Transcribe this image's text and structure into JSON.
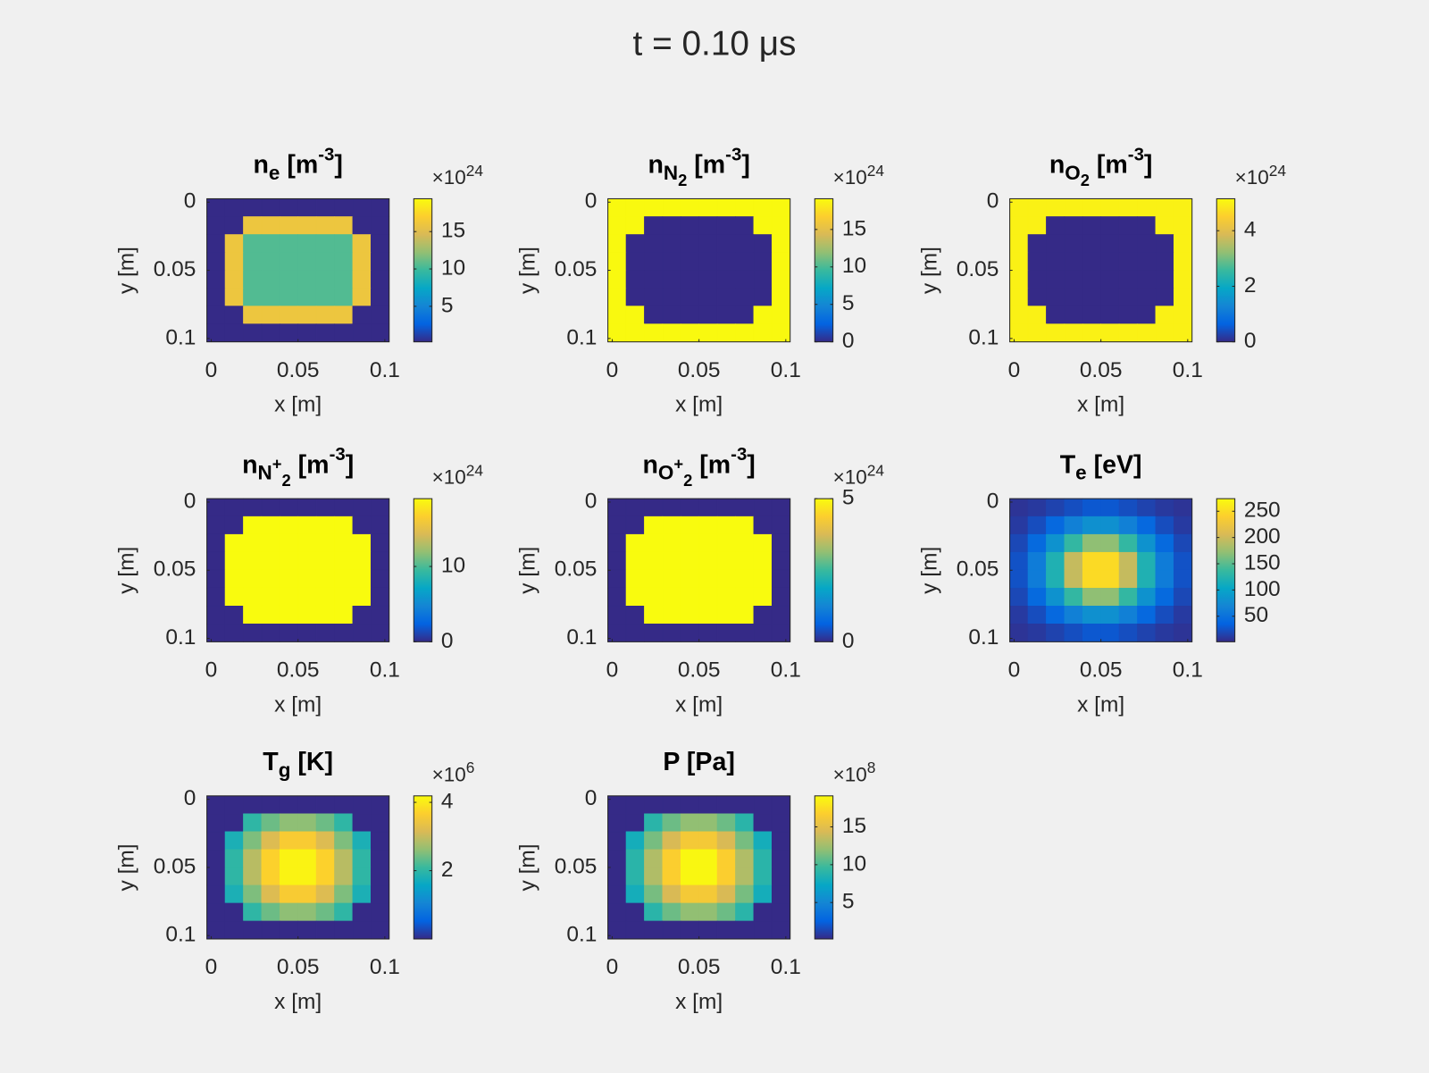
{
  "figure_title": "t = 0.10 μs",
  "chart_data": [
    {
      "type": "heatmap",
      "colormap": "parula",
      "title": [
        {
          "t": "n"
        },
        {
          "t": "e",
          "s": "sub"
        },
        {
          "t": " [m"
        },
        {
          "t": "-3",
          "s": "sup"
        },
        {
          "t": "]"
        }
      ],
      "xlabel": "x [m]",
      "ylabel": "y [m]",
      "xlim": [
        -0.0025,
        0.1025
      ],
      "ylim": [
        -0.0025,
        0.1025
      ],
      "xticks": [
        0,
        0.05,
        0.1
      ],
      "yticks": [
        0,
        0.05,
        0.1
      ],
      "clim": [
        0.24,
        19.4
      ],
      "cticks": [
        5,
        10,
        15
      ],
      "colorbar_exponent": {
        "base": "×10",
        "power": "24"
      },
      "z": [
        [
          0.24,
          0.24,
          0.24,
          0.24,
          0.24,
          0.24,
          0.24,
          0.24,
          0.24,
          0.24
        ],
        [
          0.24,
          0.24,
          16,
          16,
          16,
          16,
          16,
          16,
          0.24,
          0.24
        ],
        [
          0.24,
          16,
          10.5,
          10.5,
          10.5,
          10.5,
          10.5,
          10.5,
          16,
          0.24
        ],
        [
          0.24,
          16,
          10.5,
          10.5,
          10.5,
          10.5,
          10.5,
          10.5,
          16,
          0.24
        ],
        [
          0.24,
          16,
          10.5,
          10.5,
          10.5,
          10.5,
          10.5,
          10.5,
          16,
          0.24
        ],
        [
          0.24,
          16,
          10.5,
          10.5,
          10.5,
          10.5,
          10.5,
          10.5,
          16,
          0.24
        ],
        [
          0.24,
          0.24,
          16,
          16,
          16,
          16,
          16,
          16,
          0.24,
          0.24
        ],
        [
          0.24,
          0.24,
          0.24,
          0.24,
          0.24,
          0.24,
          0.24,
          0.24,
          0.24,
          0.24
        ]
      ]
    },
    {
      "type": "heatmap",
      "colormap": "parula",
      "title": [
        {
          "t": "n"
        },
        {
          "t": "N",
          "s": "sub"
        },
        {
          "t": "2",
          "s": "sub2"
        },
        {
          "t": " [m"
        },
        {
          "t": "-3",
          "s": "sup"
        },
        {
          "t": "]"
        }
      ],
      "xlabel": "x [m]",
      "ylabel": "y [m]",
      "xlim": [
        -0.0025,
        0.1025
      ],
      "ylim": [
        -0.0025,
        0.1025
      ],
      "xticks": [
        0,
        0.05,
        0.1
      ],
      "yticks": [
        0,
        0.05,
        0.1
      ],
      "clim": [
        0,
        19.1
      ],
      "cticks": [
        0,
        5,
        10,
        15
      ],
      "colorbar_exponent": {
        "base": "×10",
        "power": "24"
      },
      "z": [
        [
          19,
          19,
          19,
          19,
          19,
          19,
          19,
          19,
          19,
          19
        ],
        [
          19,
          19,
          0,
          0,
          0,
          0,
          0,
          0,
          19,
          19
        ],
        [
          19,
          0,
          0,
          0,
          0,
          0,
          0,
          0,
          0,
          19
        ],
        [
          19,
          0,
          0,
          0,
          0,
          0,
          0,
          0,
          0,
          19
        ],
        [
          19,
          0,
          0,
          0,
          0,
          0,
          0,
          0,
          0,
          19
        ],
        [
          19,
          0,
          0,
          0,
          0,
          0,
          0,
          0,
          0,
          19
        ],
        [
          19,
          19,
          0,
          0,
          0,
          0,
          0,
          0,
          19,
          19
        ],
        [
          19,
          19,
          19,
          19,
          19,
          19,
          19,
          19,
          19,
          19
        ]
      ]
    },
    {
      "type": "heatmap",
      "colormap": "parula",
      "title": [
        {
          "t": "n"
        },
        {
          "t": "O",
          "s": "sub"
        },
        {
          "t": "2",
          "s": "sub2"
        },
        {
          "t": " [m"
        },
        {
          "t": "-3",
          "s": "sup"
        },
        {
          "t": "]"
        }
      ],
      "xlabel": "x [m]",
      "ylabel": "y [m]",
      "xlim": [
        -0.0025,
        0.1025
      ],
      "ylim": [
        -0.0025,
        0.1025
      ],
      "xticks": [
        0,
        0.05,
        0.1
      ],
      "yticks": [
        0,
        0.05,
        0.1
      ],
      "clim": [
        0,
        5.15
      ],
      "cticks": [
        0,
        2,
        4
      ],
      "colorbar_exponent": {
        "base": "×10",
        "power": "24"
      },
      "z": [
        [
          5,
          5,
          5,
          5,
          5,
          5,
          5,
          5,
          5,
          5
        ],
        [
          5,
          5,
          0,
          0,
          0,
          0,
          0,
          0,
          5,
          5
        ],
        [
          5,
          0,
          0,
          0,
          0,
          0,
          0,
          0,
          0,
          5
        ],
        [
          5,
          0,
          0,
          0,
          0,
          0,
          0,
          0,
          0,
          5
        ],
        [
          5,
          0,
          0,
          0,
          0,
          0,
          0,
          0,
          0,
          5
        ],
        [
          5,
          0,
          0,
          0,
          0,
          0,
          0,
          0,
          0,
          5
        ],
        [
          5,
          5,
          0,
          0,
          0,
          0,
          0,
          0,
          5,
          5
        ],
        [
          5,
          5,
          5,
          5,
          5,
          5,
          5,
          5,
          5,
          5
        ]
      ]
    },
    {
      "type": "heatmap",
      "colormap": "parula",
      "title": [
        {
          "t": "n"
        },
        {
          "t": "N",
          "s": "sub"
        },
        {
          "t": "+",
          "s": "subsup"
        },
        {
          "t": "2",
          "s": "sub2"
        },
        {
          "t": " [m"
        },
        {
          "t": "-3",
          "s": "sup"
        },
        {
          "t": "]"
        }
      ],
      "xlabel": "x [m]",
      "ylabel": "y [m]",
      "xlim": [
        -0.0025,
        0.1025
      ],
      "ylim": [
        -0.0025,
        0.1025
      ],
      "xticks": [
        0,
        0.05,
        0.1
      ],
      "yticks": [
        0,
        0.05,
        0.1
      ],
      "clim": [
        0,
        19
      ],
      "cticks": [
        0,
        10
      ],
      "colorbar_exponent": {
        "base": "×10",
        "power": "24"
      },
      "z": [
        [
          0,
          0,
          0,
          0,
          0,
          0,
          0,
          0,
          0,
          0
        ],
        [
          0,
          0,
          19,
          19,
          19,
          19,
          19,
          19,
          0,
          0
        ],
        [
          0,
          19,
          19,
          19,
          19,
          19,
          19,
          19,
          19,
          0
        ],
        [
          0,
          19,
          19,
          19,
          19,
          19,
          19,
          19,
          19,
          0
        ],
        [
          0,
          19,
          19,
          19,
          19,
          19,
          19,
          19,
          19,
          0
        ],
        [
          0,
          19,
          19,
          19,
          19,
          19,
          19,
          19,
          19,
          0
        ],
        [
          0,
          0,
          19,
          19,
          19,
          19,
          19,
          19,
          0,
          0
        ],
        [
          0,
          0,
          0,
          0,
          0,
          0,
          0,
          0,
          0,
          0
        ]
      ]
    },
    {
      "type": "heatmap",
      "colormap": "parula",
      "title": [
        {
          "t": "n"
        },
        {
          "t": "O",
          "s": "sub"
        },
        {
          "t": "+",
          "s": "subsup"
        },
        {
          "t": "2",
          "s": "sub2"
        },
        {
          "t": " [m"
        },
        {
          "t": "-3",
          "s": "sup"
        },
        {
          "t": "]"
        }
      ],
      "xlabel": "x [m]",
      "ylabel": "y [m]",
      "xlim": [
        -0.0025,
        0.1025
      ],
      "ylim": [
        -0.0025,
        0.1025
      ],
      "xticks": [
        0,
        0.05,
        0.1
      ],
      "yticks": [
        0,
        0.05,
        0.1
      ],
      "clim": [
        0,
        5
      ],
      "cticks": [
        0,
        5
      ],
      "colorbar_exponent": {
        "base": "×10",
        "power": "24"
      },
      "z": [
        [
          0,
          0,
          0,
          0,
          0,
          0,
          0,
          0,
          0,
          0
        ],
        [
          0,
          0,
          5,
          5,
          5,
          5,
          5,
          5,
          0,
          0
        ],
        [
          0,
          5,
          5,
          5,
          5,
          5,
          5,
          5,
          5,
          0
        ],
        [
          0,
          5,
          5,
          5,
          5,
          5,
          5,
          5,
          5,
          0
        ],
        [
          0,
          5,
          5,
          5,
          5,
          5,
          5,
          5,
          5,
          0
        ],
        [
          0,
          5,
          5,
          5,
          5,
          5,
          5,
          5,
          5,
          0
        ],
        [
          0,
          0,
          5,
          5,
          5,
          5,
          5,
          5,
          0,
          0
        ],
        [
          0,
          0,
          0,
          0,
          0,
          0,
          0,
          0,
          0,
          0
        ]
      ]
    },
    {
      "type": "heatmap",
      "colormap": "parula",
      "title": [
        {
          "t": "T"
        },
        {
          "t": "e",
          "s": "sub"
        },
        {
          "t": " [eV]"
        }
      ],
      "xlabel": "x [m]",
      "ylabel": "y [m]",
      "xlim": [
        -0.0025,
        0.1025
      ],
      "ylim": [
        -0.0025,
        0.1025
      ],
      "xticks": [
        0,
        0.05,
        0.1
      ],
      "yticks": [
        0,
        0.05,
        0.1
      ],
      "clim": [
        1.3,
        274
      ],
      "cticks": [
        50,
        100,
        150,
        200,
        250
      ],
      "z": [
        [
          7,
          10,
          16,
          23,
          29,
          29,
          23,
          16,
          10,
          7
        ],
        [
          11,
          22,
          41,
          64,
          81,
          81,
          64,
          41,
          22,
          11
        ],
        [
          19,
          42,
          83,
          134,
          171,
          171,
          134,
          83,
          42,
          19
        ],
        [
          25,
          60,
          121,
          196,
          249,
          249,
          196,
          121,
          60,
          25
        ],
        [
          25,
          60,
          121,
          196,
          249,
          249,
          196,
          121,
          60,
          25
        ],
        [
          19,
          42,
          83,
          134,
          171,
          171,
          134,
          83,
          42,
          19
        ],
        [
          11,
          22,
          41,
          64,
          81,
          81,
          64,
          41,
          22,
          11
        ],
        [
          7,
          10,
          16,
          23,
          29,
          29,
          23,
          16,
          10,
          7
        ]
      ]
    },
    {
      "type": "heatmap",
      "colormap": "parula",
      "title": [
        {
          "t": "T"
        },
        {
          "t": "g",
          "s": "sub"
        },
        {
          "t": " [K]"
        }
      ],
      "xlabel": "x [m]",
      "ylabel": "y [m]",
      "xlim": [
        -0.0025,
        0.1025
      ],
      "ylim": [
        -0.0025,
        0.1025
      ],
      "xticks": [
        0,
        0.05,
        0.1
      ],
      "yticks": [
        0,
        0.05,
        0.1
      ],
      "clim": [
        0,
        4.19
      ],
      "cticks": [
        2,
        4
      ],
      "colorbar_exponent": {
        "base": "×10",
        "power": "6"
      },
      "z": [
        [
          0,
          0,
          0,
          0,
          0,
          0,
          0,
          0,
          0,
          0
        ],
        [
          0,
          0,
          2.0,
          2.4,
          2.6,
          2.6,
          2.4,
          2.0,
          0,
          0
        ],
        [
          0,
          1.8,
          2.5,
          3.2,
          3.6,
          3.6,
          3.2,
          2.5,
          1.8,
          0
        ],
        [
          0,
          2.0,
          2.9,
          3.7,
          4.1,
          4.1,
          3.7,
          2.9,
          2.0,
          0
        ],
        [
          0,
          2.0,
          2.9,
          3.7,
          4.1,
          4.1,
          3.7,
          2.9,
          2.0,
          0
        ],
        [
          0,
          1.8,
          2.5,
          3.2,
          3.6,
          3.6,
          3.2,
          2.5,
          1.8,
          0
        ],
        [
          0,
          0,
          2.0,
          2.4,
          2.6,
          2.6,
          2.4,
          2.0,
          0,
          0
        ],
        [
          0,
          0,
          0,
          0,
          0,
          0,
          0,
          0,
          0,
          0
        ]
      ]
    },
    {
      "type": "heatmap",
      "colormap": "parula",
      "title": [
        {
          "t": "P [Pa]"
        }
      ],
      "xlabel": "x [m]",
      "ylabel": "y [m]",
      "xlim": [
        -0.0025,
        0.1025
      ],
      "ylim": [
        -0.0025,
        0.1025
      ],
      "xticks": [
        0,
        0.05,
        0.1
      ],
      "yticks": [
        0,
        0.05,
        0.1
      ],
      "clim": [
        0.18,
        19.1
      ],
      "cticks": [
        5,
        10,
        15
      ],
      "colorbar_exponent": {
        "base": "×10",
        "power": "8"
      },
      "z": [
        [
          0.18,
          0.18,
          0.18,
          0.18,
          0.18,
          0.18,
          0.18,
          0.18,
          0.18,
          0.18
        ],
        [
          0.18,
          0.18,
          9,
          11,
          12,
          12,
          11,
          9,
          0.18,
          0.18
        ],
        [
          0.18,
          8,
          11.3,
          14.4,
          16.2,
          16.2,
          14.4,
          11.3,
          8,
          0.18
        ],
        [
          0.18,
          9,
          13,
          16.7,
          18.9,
          18.9,
          16.7,
          13,
          9,
          0.18
        ],
        [
          0.18,
          9,
          13,
          16.7,
          18.9,
          18.9,
          16.7,
          13,
          9,
          0.18
        ],
        [
          0.18,
          8,
          11.3,
          14.4,
          16.2,
          16.2,
          14.4,
          11.3,
          8,
          0.18
        ],
        [
          0.18,
          0.18,
          9,
          11,
          12,
          12,
          11,
          9,
          0.18,
          0.18
        ],
        [
          0.18,
          0.18,
          0.18,
          0.18,
          0.18,
          0.18,
          0.18,
          0.18,
          0.18,
          0.18
        ]
      ]
    }
  ]
}
